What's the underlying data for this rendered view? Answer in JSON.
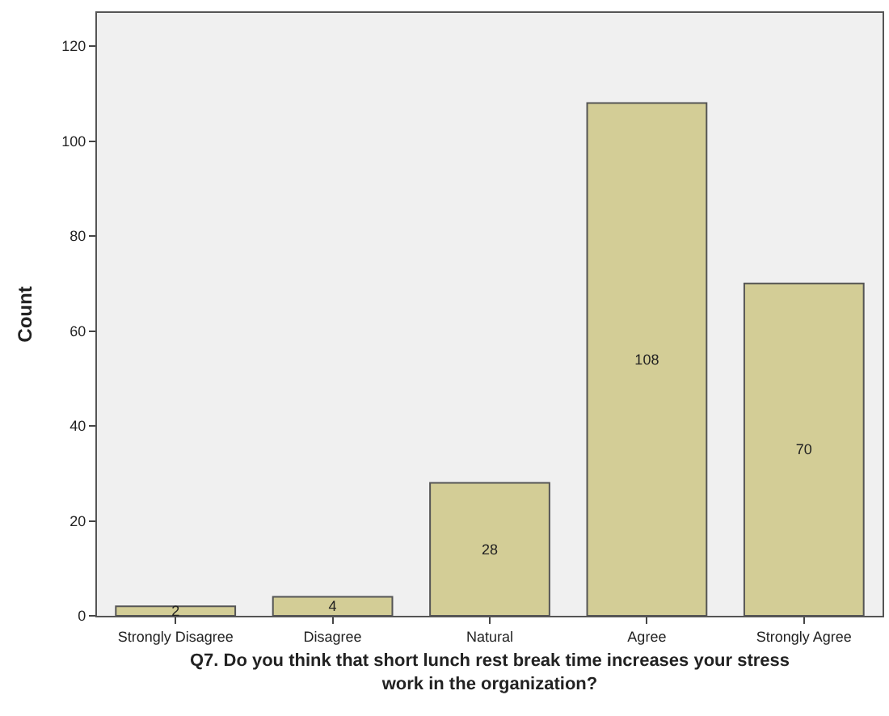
{
  "chart_data": {
    "type": "bar",
    "xlabel": "Q7. Do you think that short lunch rest break time increases your stress\nwork in the organization?",
    "ylabel": "Count",
    "categories": [
      "Strongly Disagree",
      "Disagree",
      "Natural",
      "Agree",
      "Strongly Agree"
    ],
    "values": [
      2,
      4,
      28,
      108,
      70
    ],
    "color": "#d3cd96",
    "ylim": [
      0,
      127
    ],
    "yticks": [
      0,
      20,
      40,
      60,
      80,
      100,
      120
    ],
    "grid": false,
    "data_labels": true
  }
}
